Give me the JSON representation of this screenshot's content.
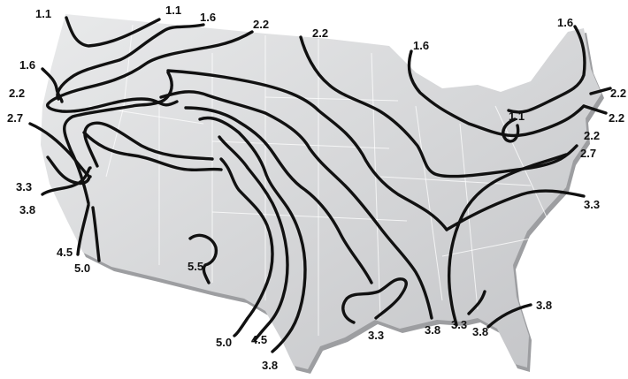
{
  "map": {
    "background_color": "#ffffff",
    "land_color": "#d2d3d5",
    "land_highlight_color": "#e8e9ea",
    "contour_color": "#111111",
    "contour_values": [
      "1.1",
      "1.6",
      "2.2",
      "2.7",
      "3.3",
      "3.8",
      "4.5",
      "5.0",
      "5.5"
    ],
    "labels": [
      {
        "id": "l01",
        "text": "1.1"
      },
      {
        "id": "l02",
        "text": "1.1"
      },
      {
        "id": "l03",
        "text": "1.6"
      },
      {
        "id": "l04",
        "text": "2.2"
      },
      {
        "id": "l05",
        "text": "2.2"
      },
      {
        "id": "l06",
        "text": "1.6"
      },
      {
        "id": "l07",
        "text": "1.6"
      },
      {
        "id": "l08",
        "text": "1.6"
      },
      {
        "id": "l09",
        "text": "2.2"
      },
      {
        "id": "l10",
        "text": "2.7"
      },
      {
        "id": "l11",
        "text": "2.2"
      },
      {
        "id": "l12",
        "text": "2.2"
      },
      {
        "id": "l13",
        "text": "1.1"
      },
      {
        "id": "l14",
        "text": "2.2"
      },
      {
        "id": "l15",
        "text": "2.7"
      },
      {
        "id": "l16",
        "text": "3.3"
      },
      {
        "id": "l17",
        "text": "3.3"
      },
      {
        "id": "l18",
        "text": "3.8"
      },
      {
        "id": "l19",
        "text": "4.5"
      },
      {
        "id": "l20",
        "text": "5.0"
      },
      {
        "id": "l21",
        "text": "5.5"
      },
      {
        "id": "l22",
        "text": "5.0"
      },
      {
        "id": "l23",
        "text": "4.5"
      },
      {
        "id": "l24",
        "text": "3.8"
      },
      {
        "id": "l25",
        "text": "3.3"
      },
      {
        "id": "l26",
        "text": "3.8"
      },
      {
        "id": "l27",
        "text": "3.3"
      },
      {
        "id": "l28",
        "text": "3.8"
      },
      {
        "id": "l29",
        "text": "3.8"
      }
    ]
  }
}
